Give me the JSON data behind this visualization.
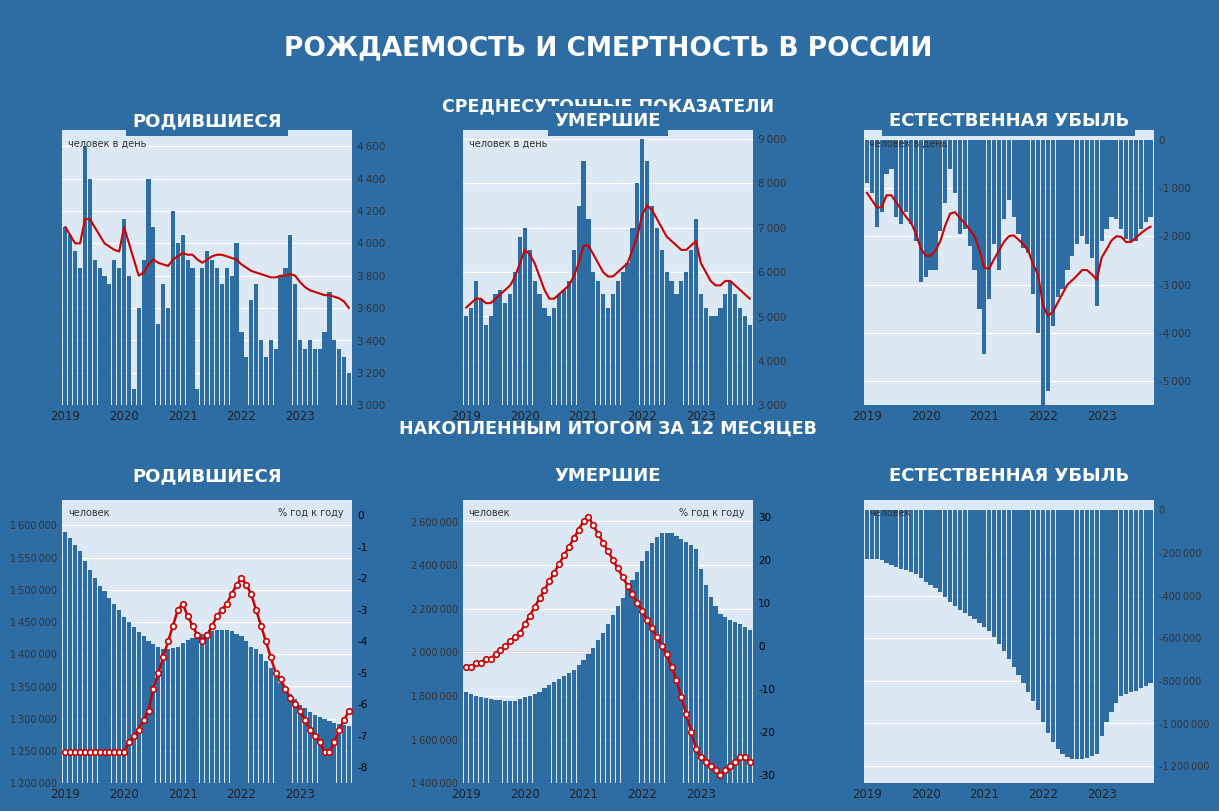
{
  "title": "РОЖДАЕМОСТЬ И СМЕРТНОСТЬ В РОССИИ",
  "subtitle1": "СРЕДНЕСУТОЧНЫЕ ПОКАЗАТЕЛИ",
  "subtitle2": "НАКОПЛЕННЫМ ИТОГОМ ЗА 12 МЕСЯЦЕВ",
  "bg_color": "#2e6da4",
  "gold_color": "#8B6914",
  "panel_header_color": "#2e6da4",
  "chart_bg": "#dce9f5",
  "bar_color": "#2e6da4",
  "line_color": "#cc0000",
  "panel_titles": [
    "РОДИВШИЕСЯ",
    "УМЕРШИЕ",
    "ЕСТЕСТВЕННАЯ УБЫЛЬ"
  ],
  "ylabel_top": "человек в день",
  "ylabel_bottom_left": "человек",
  "ylabel_bottom_right": "% год к году",
  "birth_daily": [
    4100,
    4050,
    3950,
    3850,
    4600,
    4400,
    3900,
    3850,
    3800,
    3750,
    3900,
    3850,
    4150,
    3800,
    3100,
    3600,
    3900,
    4400,
    4100,
    3500,
    3750,
    3600,
    4200,
    4000,
    4050,
    3900,
    3850,
    3100,
    3850,
    3950,
    3900,
    3850,
    3750,
    3850,
    3800,
    4000,
    3450,
    3300,
    3650,
    3750,
    3400,
    3300,
    3400,
    3350,
    3800,
    3850,
    4050,
    3750,
    3400,
    3350,
    3400,
    3350,
    3350,
    3450,
    3700,
    3400,
    3350,
    3300,
    3200
  ],
  "birth_ma": [
    4100,
    4050,
    4000,
    4000,
    4150,
    4150,
    4100,
    4050,
    4000,
    3980,
    3960,
    3950,
    4100,
    4000,
    3900,
    3800,
    3820,
    3870,
    3900,
    3880,
    3870,
    3860,
    3900,
    3920,
    3940,
    3930,
    3930,
    3900,
    3880,
    3900,
    3920,
    3930,
    3930,
    3920,
    3910,
    3900,
    3870,
    3850,
    3830,
    3820,
    3810,
    3800,
    3790,
    3790,
    3800,
    3800,
    3810,
    3800,
    3760,
    3730,
    3710,
    3700,
    3690,
    3680,
    3680,
    3670,
    3660,
    3640,
    3600
  ],
  "birth_ylim": [
    3000,
    4700
  ],
  "birth_yticks": [
    3000,
    3200,
    3400,
    3600,
    3800,
    4000,
    4200,
    4400,
    4600
  ],
  "death_daily": [
    5000,
    5200,
    5800,
    5400,
    4800,
    5000,
    5500,
    5600,
    5300,
    5500,
    6000,
    6800,
    7000,
    6500,
    5800,
    5500,
    5200,
    5000,
    5200,
    5500,
    5600,
    5800,
    6500,
    7500,
    8500,
    7200,
    6000,
    5800,
    5500,
    5200,
    5500,
    5800,
    6000,
    6200,
    7000,
    8000,
    9000,
    8500,
    7500,
    7000,
    6500,
    6000,
    5800,
    5500,
    5800,
    6000,
    6500,
    7200,
    5500,
    5200,
    5000,
    5000,
    5200,
    5500,
    5800,
    5500,
    5200,
    5000,
    4800
  ],
  "death_ma": [
    5200,
    5300,
    5400,
    5400,
    5300,
    5300,
    5400,
    5500,
    5600,
    5700,
    5900,
    6200,
    6500,
    6400,
    6200,
    5900,
    5600,
    5400,
    5400,
    5500,
    5600,
    5700,
    5900,
    6200,
    6600,
    6600,
    6400,
    6200,
    6000,
    5900,
    5900,
    6000,
    6100,
    6200,
    6500,
    6800,
    7300,
    7500,
    7400,
    7200,
    7000,
    6800,
    6700,
    6600,
    6500,
    6500,
    6600,
    6700,
    6200,
    6000,
    5800,
    5700,
    5700,
    5800,
    5800,
    5700,
    5600,
    5500,
    5400
  ],
  "death_ylim": [
    3000,
    9200
  ],
  "death_yticks": [
    3000,
    4000,
    5000,
    6000,
    7000,
    8000,
    9000
  ],
  "natinc_daily": [
    -900,
    -1100,
    -1800,
    -1500,
    -700,
    -600,
    -1600,
    -1750,
    -1500,
    -1750,
    -2100,
    -2950,
    -2850,
    -2700,
    -2700,
    -1900,
    -1300,
    -600,
    -1100,
    -1950,
    -1850,
    -2200,
    -2700,
    -3500,
    -4450,
    -3300,
    -2150,
    -2700,
    -1650,
    -1250,
    -1600,
    -1950,
    -2250,
    -2350,
    -3200,
    -4000,
    -5550,
    -5200,
    -3850,
    -3250,
    -3100,
    -2700,
    -2400,
    -2150,
    -2000,
    -2150,
    -2450,
    -3450,
    -2100,
    -1850,
    -1600,
    -1650,
    -1850,
    -2050,
    -2100,
    -2100,
    -1850,
    -1700,
    -1600
  ],
  "natinc_ma": [
    -1100,
    -1250,
    -1400,
    -1400,
    -1150,
    -1150,
    -1300,
    -1450,
    -1600,
    -1720,
    -1940,
    -2250,
    -2400,
    -2400,
    -2300,
    -2100,
    -1780,
    -1530,
    -1500,
    -1620,
    -1730,
    -1860,
    -2000,
    -2280,
    -2660,
    -2670,
    -2470,
    -2300,
    -2120,
    -2000,
    -1980,
    -2070,
    -2170,
    -2300,
    -2590,
    -2800,
    -3430,
    -3650,
    -3570,
    -3380,
    -3190,
    -3000,
    -2910,
    -2810,
    -2700,
    -2700,
    -2790,
    -2900,
    -2440,
    -2270,
    -2090,
    -2000,
    -2010,
    -2120,
    -2120,
    -2030,
    -1940,
    -1860,
    -1800
  ],
  "natinc_ylim": [
    -5500,
    200
  ],
  "natinc_yticks": [
    -5000,
    -4000,
    -3000,
    -2000,
    -1000,
    0
  ],
  "birth_cum": [
    1590000,
    1580000,
    1570000,
    1560000,
    1545000,
    1530000,
    1518000,
    1506000,
    1498000,
    1488000,
    1478000,
    1468000,
    1458000,
    1450000,
    1443000,
    1435000,
    1428000,
    1420000,
    1416000,
    1412000,
    1408000,
    1408000,
    1410000,
    1412000,
    1418000,
    1422000,
    1426000,
    1430000,
    1432000,
    1434000,
    1436000,
    1438000,
    1438000,
    1438000,
    1436000,
    1432000,
    1428000,
    1420000,
    1412000,
    1408000,
    1400000,
    1390000,
    1378000,
    1366000,
    1355000,
    1345000,
    1338000,
    1330000,
    1322000,
    1316000,
    1311000,
    1306000,
    1302000,
    1299000,
    1296000,
    1294000,
    1292000,
    1290000,
    1288000
  ],
  "birth_cum_yoy": [
    -7.5,
    -7.5,
    -7.5,
    -7.5,
    -7.5,
    -7.5,
    -7.5,
    -7.5,
    -7.5,
    -7.5,
    -7.5,
    -7.5,
    -7.5,
    -7.2,
    -7.0,
    -6.8,
    -6.5,
    -6.2,
    -5.5,
    -5.0,
    -4.5,
    -4.0,
    -3.5,
    -3.0,
    -2.8,
    -3.2,
    -3.5,
    -3.8,
    -4.0,
    -3.8,
    -3.5,
    -3.2,
    -3.0,
    -2.8,
    -2.5,
    -2.2,
    -2.0,
    -2.2,
    -2.5,
    -3.0,
    -3.5,
    -4.0,
    -4.5,
    -5.0,
    -5.2,
    -5.5,
    -5.8,
    -6.0,
    -6.2,
    -6.5,
    -6.8,
    -7.0,
    -7.2,
    -7.5,
    -7.5,
    -7.2,
    -6.8,
    -6.5,
    -6.2
  ],
  "birth_cum_ylim": [
    1200000,
    1640000
  ],
  "birth_cum_yticks": [
    1200000,
    1250000,
    1300000,
    1350000,
    1400000,
    1450000,
    1500000,
    1550000,
    1600000
  ],
  "birth_cum_yoy_ylim": [
    -8.5,
    0.5
  ],
  "birth_cum_yoy_yticks": [
    -8,
    -7,
    -6,
    -5,
    -4,
    -3,
    -2,
    -1,
    0
  ],
  "death_cum": [
    1820000,
    1810000,
    1800000,
    1795000,
    1790000,
    1785000,
    1782000,
    1780000,
    1778000,
    1776000,
    1778000,
    1785000,
    1795000,
    1800000,
    1808000,
    1820000,
    1835000,
    1850000,
    1865000,
    1878000,
    1890000,
    1905000,
    1920000,
    1940000,
    1965000,
    1990000,
    2020000,
    2055000,
    2090000,
    2130000,
    2170000,
    2210000,
    2250000,
    2290000,
    2330000,
    2370000,
    2420000,
    2465000,
    2500000,
    2530000,
    2545000,
    2548000,
    2545000,
    2535000,
    2520000,
    2505000,
    2490000,
    2475000,
    2380000,
    2310000,
    2255000,
    2210000,
    2175000,
    2160000,
    2150000,
    2140000,
    2128000,
    2115000,
    2100000
  ],
  "death_cum_yoy": [
    -5,
    -5,
    -4,
    -4,
    -3,
    -3,
    -2,
    -1,
    0,
    1,
    2,
    3,
    5,
    7,
    9,
    11,
    13,
    15,
    17,
    19,
    21,
    23,
    25,
    27,
    29,
    30,
    28,
    26,
    24,
    22,
    20,
    18,
    16,
    14,
    12,
    10,
    8,
    6,
    4,
    2,
    0,
    -2,
    -5,
    -8,
    -12,
    -16,
    -20,
    -24,
    -26,
    -27,
    -28,
    -29,
    -30,
    -29,
    -28,
    -27,
    -26,
    -26,
    -27
  ],
  "death_cum_ylim": [
    1400000,
    2700000
  ],
  "death_cum_yticks": [
    1400000,
    1600000,
    1800000,
    2000000,
    2200000,
    2400000,
    2600000
  ],
  "death_cum_yoy_ylim": [
    -32,
    34
  ],
  "death_cum_yoy_yticks": [
    -30,
    -20,
    -10,
    0,
    10,
    20,
    30
  ],
  "natinc_cum": [
    -230000,
    -230000,
    -230000,
    -235000,
    -245000,
    -255000,
    -264000,
    -274000,
    -280000,
    -288000,
    -300000,
    -317000,
    -337000,
    -350000,
    -365000,
    -385000,
    -407000,
    -430000,
    -449000,
    -466000,
    -482000,
    -497000,
    -510000,
    -528000,
    -547000,
    -568000,
    -594000,
    -625000,
    -658000,
    -696000,
    -734000,
    -772000,
    -812000,
    -852000,
    -894000,
    -938000,
    -992000,
    -1045000,
    -1088000,
    -1122000,
    -1145000,
    -1158000,
    -1167000,
    -1169000,
    -1165000,
    -1160000,
    -1152000,
    -1145000,
    -1058000,
    -994000,
    -944000,
    -904000,
    -873000,
    -861000,
    -854000,
    -846000,
    -836000,
    -825000,
    -812000
  ],
  "natinc_cum_ylim": [
    -1280000,
    50000
  ],
  "natinc_cum_yticks": [
    -1200000,
    -1000000,
    -800000,
    -600000,
    -400000,
    -200000,
    0
  ]
}
